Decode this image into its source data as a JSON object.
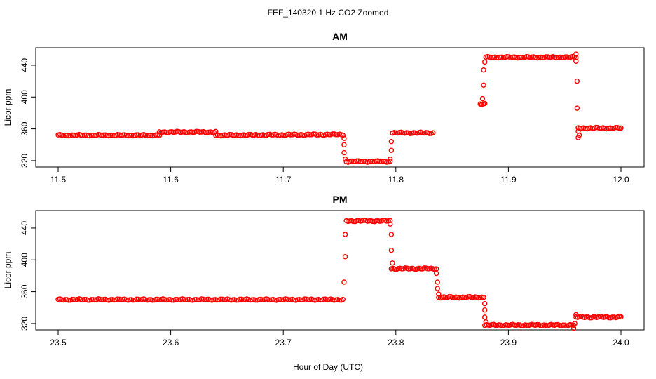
{
  "page": {
    "title": "FEF_140320  1 Hz CO2 Zoomed",
    "xlabel": "Hour of Day (UTC)"
  },
  "colors": {
    "points": "#ff0000",
    "axis": "#000000",
    "background": "#ffffff"
  },
  "chart_data": [
    {
      "type": "scatter",
      "title": "AM",
      "xlabel": "Hour of Day (UTC)",
      "ylabel": "Licor ppm",
      "xlim": [
        11.5,
        12.0
      ],
      "ylim": [
        312,
        462
      ],
      "xticks": [
        11.5,
        11.6,
        11.7,
        11.8,
        11.9,
        12.0
      ],
      "xtick_labels": [
        "11.5",
        "11.6",
        "11.7",
        "11.8",
        "11.9",
        "12.0"
      ],
      "yticks": [
        320,
        360,
        400,
        440
      ],
      "ytick_labels": [
        "320",
        "360",
        "400",
        "440"
      ],
      "grid": false,
      "series": [
        {
          "color": "#ff0000",
          "marker": "open-circle",
          "segments": [
            {
              "x": [
                11.5,
                11.59
              ],
              "y": [
                352,
                352
              ]
            },
            {
              "x": [
                11.59,
                11.64
              ],
              "y": [
                356,
                356
              ]
            },
            {
              "x": [
                11.64,
                11.753
              ],
              "y": [
                352,
                353
              ]
            },
            {
              "x": [
                11.756,
                11.795
              ],
              "y": [
                319,
                319
              ]
            },
            {
              "x": [
                11.797,
                11.833
              ],
              "y": [
                355,
                355
              ]
            },
            {
              "x": [
                11.875,
                11.879
              ],
              "y": [
                391,
                391
              ]
            },
            {
              "x": [
                11.88,
                11.96
              ],
              "y": [
                450,
                450
              ]
            },
            {
              "x": [
                11.962,
                12.0
              ],
              "y": [
                361,
                361
              ]
            }
          ],
          "transitions": [
            {
              "x": 11.754,
              "y": 348
            },
            {
              "x": 11.754,
              "y": 340
            },
            {
              "x": 11.754,
              "y": 330
            },
            {
              "x": 11.755,
              "y": 322
            },
            {
              "x": 11.795,
              "y": 322
            },
            {
              "x": 11.796,
              "y": 333
            },
            {
              "x": 11.796,
              "y": 344
            },
            {
              "x": 11.877,
              "y": 398
            },
            {
              "x": 11.878,
              "y": 415
            },
            {
              "x": 11.878,
              "y": 434
            },
            {
              "x": 11.879,
              "y": 444
            },
            {
              "x": 11.96,
              "y": 454
            },
            {
              "x": 11.96,
              "y": 445
            },
            {
              "x": 11.961,
              "y": 420
            },
            {
              "x": 11.961,
              "y": 386
            },
            {
              "x": 11.962,
              "y": 357
            },
            {
              "x": 11.962,
              "y": 349
            },
            {
              "x": 11.963,
              "y": 352
            }
          ]
        }
      ]
    },
    {
      "type": "scatter",
      "title": "PM",
      "xlabel": "Hour of Day (UTC)",
      "ylabel": "Licor ppm",
      "xlim": [
        23.5,
        24.0
      ],
      "ylim": [
        312,
        462
      ],
      "xticks": [
        23.5,
        23.6,
        23.7,
        23.8,
        23.9,
        24.0
      ],
      "xtick_labels": [
        "23.5",
        "23.6",
        "23.7",
        "23.8",
        "23.9",
        "24.0"
      ],
      "yticks": [
        320,
        360,
        400,
        440
      ],
      "ytick_labels": [
        "320",
        "360",
        "400",
        "440"
      ],
      "grid": false,
      "series": [
        {
          "color": "#ff0000",
          "marker": "open-circle",
          "segments": [
            {
              "x": [
                23.5,
                23.753
              ],
              "y": [
                350,
                350
              ]
            },
            {
              "x": [
                23.756,
                23.795
              ],
              "y": [
                449,
                449
              ]
            },
            {
              "x": [
                23.796,
                23.836
              ],
              "y": [
                389,
                389
              ]
            },
            {
              "x": [
                23.838,
                23.878
              ],
              "y": [
                353,
                353
              ]
            },
            {
              "x": [
                23.879,
                23.958
              ],
              "y": [
                318,
                318
              ]
            },
            {
              "x": [
                23.96,
                24.0
              ],
              "y": [
                328,
                328
              ]
            }
          ],
          "transitions": [
            {
              "x": 23.754,
              "y": 372
            },
            {
              "x": 23.755,
              "y": 404
            },
            {
              "x": 23.755,
              "y": 432
            },
            {
              "x": 23.795,
              "y": 445
            },
            {
              "x": 23.796,
              "y": 432
            },
            {
              "x": 23.796,
              "y": 412
            },
            {
              "x": 23.797,
              "y": 396
            },
            {
              "x": 23.836,
              "y": 383
            },
            {
              "x": 23.837,
              "y": 372
            },
            {
              "x": 23.837,
              "y": 364
            },
            {
              "x": 23.838,
              "y": 357
            },
            {
              "x": 23.879,
              "y": 345
            },
            {
              "x": 23.879,
              "y": 337
            },
            {
              "x": 23.879,
              "y": 328
            },
            {
              "x": 23.88,
              "y": 322
            },
            {
              "x": 23.958,
              "y": 314
            },
            {
              "x": 23.959,
              "y": 320
            },
            {
              "x": 23.96,
              "y": 331
            }
          ]
        }
      ]
    }
  ]
}
